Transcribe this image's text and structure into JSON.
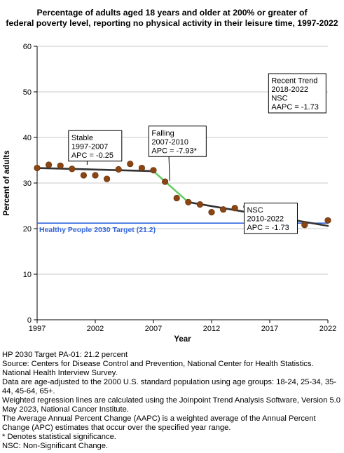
{
  "chart_data": {
    "type": "scatter",
    "title_lines": [
      "Percentage of adults aged 18 years and older at 200% or greater of",
      "federal poverty level, reporting no physical activity in their leisure time, 1997-2022"
    ],
    "xlabel": "Year",
    "ylabel": "Percent of adults",
    "xlim": [
      1997,
      2022
    ],
    "ylim": [
      0,
      60
    ],
    "x_ticks": [
      1997,
      2002,
      2007,
      2012,
      2017,
      2022
    ],
    "y_ticks": [
      0,
      10,
      20,
      30,
      40,
      50,
      60
    ],
    "grid": true,
    "series": [
      {
        "kind": "observed",
        "color": "#8b4513",
        "points": [
          {
            "x": 1997,
            "y": 33.3
          },
          {
            "x": 1998,
            "y": 34.0
          },
          {
            "x": 1999,
            "y": 33.8
          },
          {
            "x": 2000,
            "y": 33.1
          },
          {
            "x": 2001,
            "y": 31.7
          },
          {
            "x": 2002,
            "y": 31.7
          },
          {
            "x": 2003,
            "y": 30.9
          },
          {
            "x": 2004,
            "y": 33.0
          },
          {
            "x": 2005,
            "y": 34.2
          },
          {
            "x": 2006,
            "y": 33.3
          },
          {
            "x": 2007,
            "y": 32.8
          },
          {
            "x": 2008,
            "y": 30.3
          },
          {
            "x": 2009,
            "y": 26.7
          },
          {
            "x": 2010,
            "y": 25.8
          },
          {
            "x": 2011,
            "y": 25.3
          },
          {
            "x": 2012,
            "y": 23.6
          },
          {
            "x": 2013,
            "y": 24.2
          },
          {
            "x": 2014,
            "y": 24.5
          },
          {
            "x": 2015,
            "y": 24.8
          },
          {
            "x": 2016,
            "y": 21.6
          },
          {
            "x": 2017,
            "y": 20.6
          },
          {
            "x": 2018,
            "y": 20.5
          },
          {
            "x": 2020,
            "y": 20.8
          },
          {
            "x": 2022,
            "y": 21.8
          }
        ]
      },
      {
        "kind": "trend",
        "color": "#333333",
        "points": [
          {
            "x": 1997,
            "y": 33.3
          },
          {
            "x": 2007,
            "y": 32.6
          }
        ]
      },
      {
        "kind": "trend",
        "color": "#66cc66",
        "points": [
          {
            "x": 2007,
            "y": 32.6
          },
          {
            "x": 2010,
            "y": 25.8
          }
        ]
      },
      {
        "kind": "trend",
        "color": "#333333",
        "points": [
          {
            "x": 2010,
            "y": 25.8
          },
          {
            "x": 2022,
            "y": 20.6
          }
        ]
      }
    ],
    "target_line": {
      "y": 21.2,
      "label": "Healthy People 2030 Target (21.2)",
      "color": "#3366dd"
    },
    "annotations": [
      {
        "lines": [
          "Stable",
          "1997-2007",
          "APC = -0.25"
        ],
        "anchor_x": 1999.7,
        "anchor_y": 41.5,
        "pointer_x": 2001.3,
        "pointer_y": 34.0
      },
      {
        "lines": [
          "Falling",
          "2007-2010",
          "APC = -7.93*"
        ],
        "anchor_x": 2006.6,
        "anchor_y": 42.5,
        "pointer_x": 2008.4,
        "pointer_y": 30.5
      },
      {
        "lines": [
          "NSC",
          "2010-2022",
          "APC = -1.73"
        ],
        "anchor_x": 2014.8,
        "anchor_y": 25.6,
        "pointer_x": 2016.5,
        "pointer_y": 23.0
      },
      {
        "lines": [
          "Recent Trend",
          "2018-2022",
          "NSC",
          "AAPC = -1.73"
        ],
        "anchor_x": 2016.9,
        "anchor_y": 54.0,
        "pointer_x": null,
        "pointer_y": null
      }
    ]
  },
  "footnotes": [
    "HP 2030 Target PA-01: 21.2 percent",
    "Source: Centers for Disease Control and Prevention, National Center for Health Statistics. National Health Interview Survey.",
    "Data are age-adjusted to the 2000 U.S. standard population using age groups: 18-24, 25-34, 35-44, 45-64, 65+.",
    "Weighted regression lines are calculated using the Joinpoint Trend Analysis Software, Version 5.0 May 2023, National Cancer Institute.",
    "The Average Annual Percent Change (AAPC) is a weighted average of the Annual Percent Change (APC) estimates that occur over the specified year range.",
    "* Denotes statistical significance.",
    "NSC: Non-Significant Change."
  ]
}
